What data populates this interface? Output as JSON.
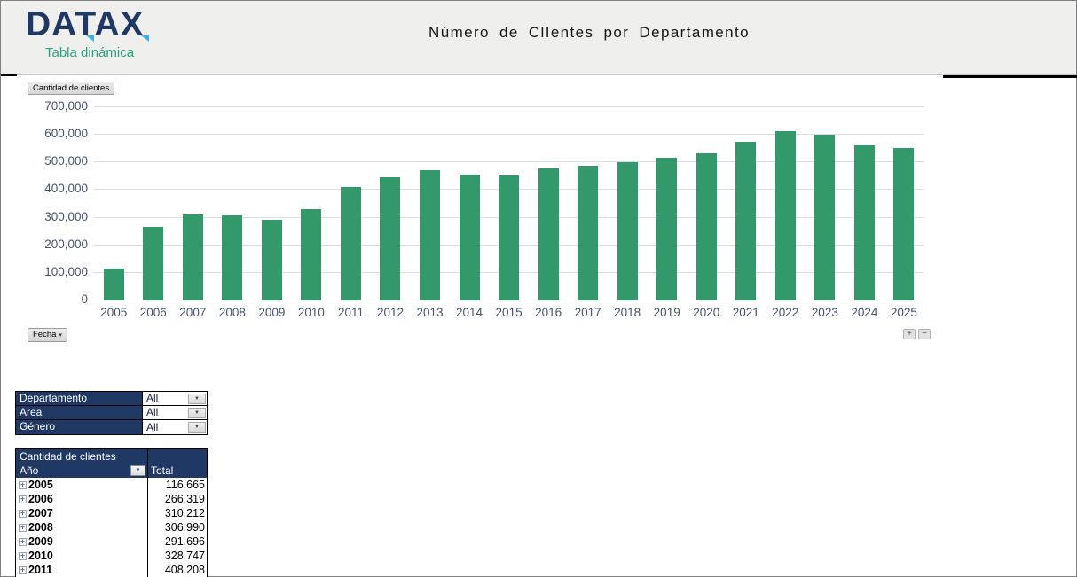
{
  "header": {
    "logo_text": "DATAX",
    "logo_subtitle": "Tabla dinámica",
    "title": "Número de ClIentes por Departamento"
  },
  "chart": {
    "value_field_label": "Cantidad de clientes",
    "axis_field_label": "Fecha",
    "axis_field_caret": "▾",
    "zoom_in_label": "+",
    "zoom_out_label": "−",
    "bar_color": "#33996b",
    "gridline_color": "#dadde2",
    "tick_color": "#44546a"
  },
  "chart_data": {
    "type": "bar",
    "title": "Número de ClIentes por Departamento",
    "xlabel": "",
    "ylabel": "",
    "categories": [
      "2005",
      "2006",
      "2007",
      "2008",
      "2009",
      "2010",
      "2011",
      "2012",
      "2013",
      "2014",
      "2015",
      "2016",
      "2017",
      "2018",
      "2019",
      "2020",
      "2021",
      "2022",
      "2023",
      "2024",
      "2025"
    ],
    "values": [
      116665,
      266319,
      310212,
      306990,
      291696,
      328747,
      408208,
      444000,
      471000,
      453000,
      450000,
      476000,
      487000,
      498000,
      514000,
      530000,
      573000,
      609000,
      597000,
      559000,
      550000
    ],
    "ylim": [
      0,
      700000
    ],
    "ytick_values": [
      0,
      100000,
      200000,
      300000,
      400000,
      500000,
      600000,
      700000
    ],
    "ytick_labels": [
      "0",
      "100,000",
      "200,000",
      "300,000",
      "400,000",
      "500,000",
      "600,000",
      "700,000"
    ],
    "grid": true,
    "legend": "none"
  },
  "filters": {
    "dropdown_caret": "▼",
    "rows": [
      {
        "label": "Departamento",
        "value": "All"
      },
      {
        "label": "Area",
        "value": "All"
      },
      {
        "label": "Género",
        "value": "All"
      }
    ]
  },
  "pivot": {
    "title": "Cantidad de clientes",
    "row_header": "Año",
    "row_header_caret": "▼",
    "value_header": "Total",
    "expand_glyph": "+",
    "rows": [
      {
        "year": "2005",
        "total": "116,665"
      },
      {
        "year": "2006",
        "total": "266,319"
      },
      {
        "year": "2007",
        "total": "310,212"
      },
      {
        "year": "2008",
        "total": "306,990"
      },
      {
        "year": "2009",
        "total": "291,696"
      },
      {
        "year": "2010",
        "total": "328,747"
      },
      {
        "year": "2011",
        "total": "408,208"
      }
    ]
  }
}
